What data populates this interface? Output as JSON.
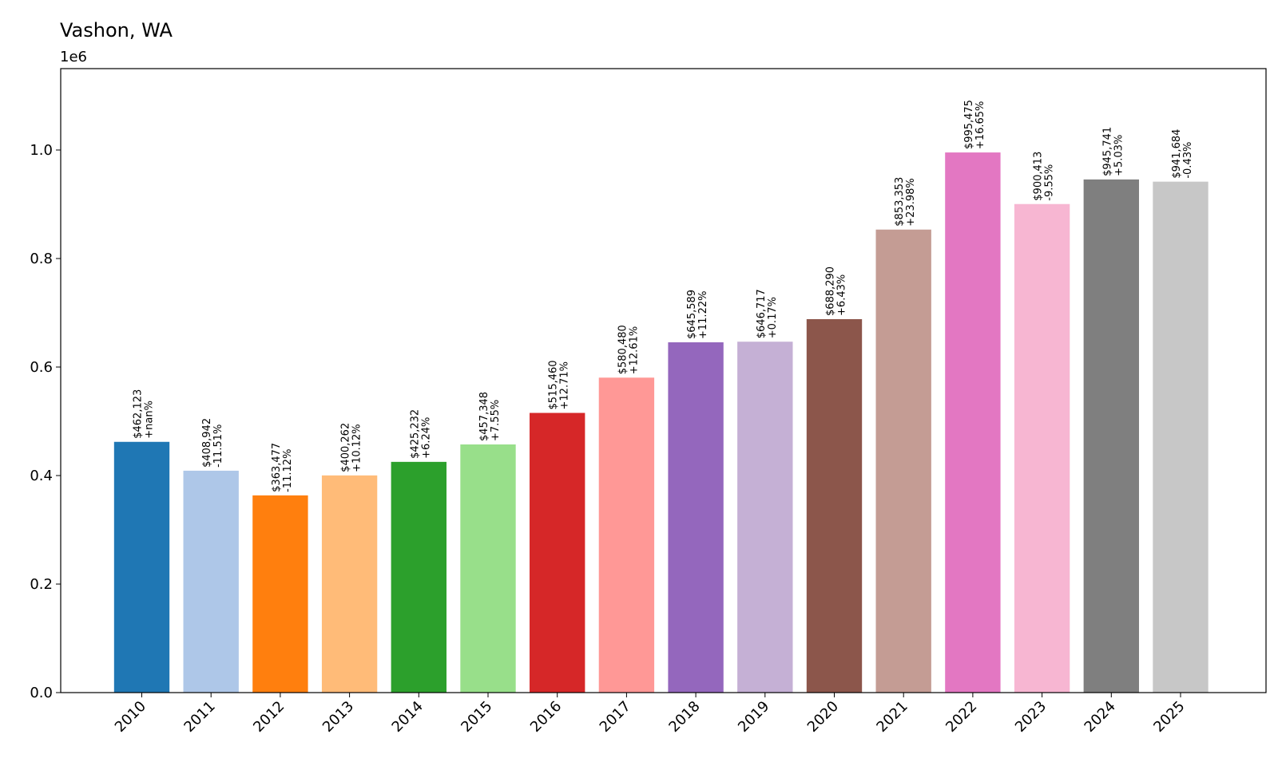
{
  "chart_data": {
    "type": "bar",
    "title": "Vashon, WA",
    "xlabel": "",
    "ylabel": "",
    "offset_label": "1e6",
    "ylim": [
      0,
      1150000
    ],
    "y_ticks": [
      0,
      200000,
      400000,
      600000,
      800000,
      1000000
    ],
    "y_tick_labels": [
      "0.0",
      "0.2",
      "0.4",
      "0.6",
      "0.8",
      "1.0"
    ],
    "grid": false,
    "categories": [
      "2010",
      "2011",
      "2012",
      "2013",
      "2014",
      "2015",
      "2016",
      "2017",
      "2018",
      "2019",
      "2020",
      "2021",
      "2022",
      "2023",
      "2024",
      "2025"
    ],
    "values": [
      462123,
      408942,
      363477,
      400262,
      425232,
      457348,
      515460,
      580480,
      645589,
      646717,
      688290,
      853353,
      995475,
      900413,
      945741,
      941684
    ],
    "value_labels": [
      "$462,123",
      "$408,942",
      "$363,477",
      "$400,262",
      "$425,232",
      "$457,348",
      "$515,460",
      "$580,480",
      "$645,589",
      "$646,717",
      "$688,290",
      "$853,353",
      "$995,475",
      "$900,413",
      "$945,741",
      "$941,684"
    ],
    "change_labels": [
      "+nan%",
      "-11.51%",
      "-11.12%",
      "+10.12%",
      "+6.24%",
      "+7.55%",
      "+12.71%",
      "+12.61%",
      "+11.22%",
      "+0.17%",
      "+6.43%",
      "+23.98%",
      "+16.65%",
      "-9.55%",
      "+5.03%",
      "-0.43%"
    ],
    "colors": [
      "#1f77b4",
      "#aec7e8",
      "#ff7f0e",
      "#ffbb78",
      "#2ca02c",
      "#98df8a",
      "#d62728",
      "#ff9896",
      "#9467bd",
      "#c5b0d5",
      "#8c564b",
      "#c49c94",
      "#e377c2",
      "#f7b6d2",
      "#7f7f7f",
      "#c7c7c7"
    ]
  }
}
